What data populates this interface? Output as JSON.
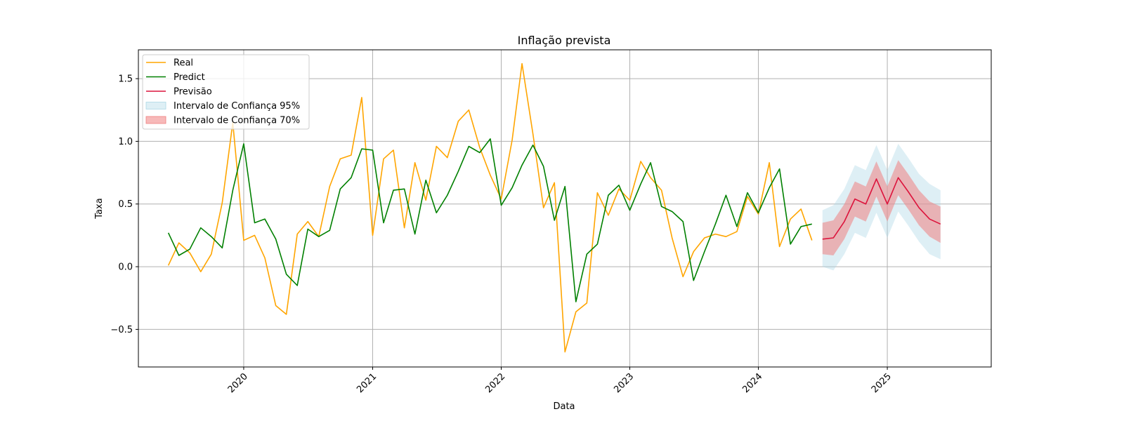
{
  "chart_data": {
    "type": "line",
    "title": "Inflação prevista",
    "xlabel": "Data",
    "ylabel": "Taxa",
    "grid": true,
    "legend_placement": "top-left",
    "xlim": [
      "2019-03-08",
      "2025-10-23"
    ],
    "ylim": [
      -0.8,
      1.73
    ],
    "x_ticks": [
      "2020-01-01",
      "2021-01-01",
      "2022-01-01",
      "2023-01-01",
      "2024-01-01",
      "2025-01-01"
    ],
    "x_tick_labels": [
      "2020",
      "2021",
      "2022",
      "2023",
      "2024",
      "2025"
    ],
    "y_ticks": [
      -0.5,
      0.0,
      0.5,
      1.0,
      1.5
    ],
    "y_tick_labels": [
      "−0.5",
      "0.0",
      "0.5",
      "1.0",
      "1.5"
    ],
    "series": [
      {
        "name": "Real",
        "color": "#ffa500",
        "start": "2019-06",
        "values": [
          0.01,
          0.19,
          0.11,
          -0.04,
          0.1,
          0.51,
          1.15,
          0.21,
          0.25,
          0.07,
          -0.31,
          -0.38,
          0.26,
          0.36,
          0.24,
          0.64,
          0.86,
          0.89,
          1.35,
          0.25,
          0.86,
          0.93,
          0.31,
          0.83,
          0.53,
          0.96,
          0.87,
          1.16,
          1.25,
          0.95,
          0.73,
          0.54,
          1.01,
          1.62,
          1.06,
          0.47,
          0.67,
          -0.68,
          -0.36,
          -0.29,
          0.59,
          0.41,
          0.62,
          0.53,
          0.84,
          0.71,
          0.61,
          0.23,
          -0.08,
          0.12,
          0.23,
          0.26,
          0.24,
          0.28,
          0.56,
          0.42,
          0.83,
          0.16,
          0.38,
          0.46,
          0.21
        ]
      },
      {
        "name": "Predict",
        "color": "#008000",
        "start": "2019-06",
        "values": [
          0.27,
          0.09,
          0.14,
          0.31,
          0.24,
          0.15,
          0.61,
          0.98,
          0.35,
          0.38,
          0.22,
          -0.06,
          -0.15,
          0.3,
          0.24,
          0.29,
          0.62,
          0.71,
          0.94,
          0.93,
          0.35,
          0.61,
          0.62,
          0.26,
          0.69,
          0.43,
          0.57,
          0.76,
          0.96,
          0.91,
          1.02,
          0.49,
          0.63,
          0.81,
          0.97,
          0.8,
          0.37,
          0.64,
          -0.28,
          0.1,
          0.18,
          0.57,
          0.65,
          0.45,
          0.66,
          0.83,
          0.48,
          0.44,
          0.36,
          -0.11,
          0.12,
          0.34,
          0.57,
          0.32,
          0.59,
          0.43,
          0.63,
          0.78,
          0.18,
          0.32,
          0.34
        ]
      },
      {
        "name": "Previsão",
        "color": "#dc143c",
        "start": "2024-07",
        "values": [
          0.22,
          0.23,
          0.36,
          0.54,
          0.5,
          0.7,
          0.5,
          0.71,
          0.6,
          0.47,
          0.38,
          0.34
        ]
      }
    ],
    "bands": [
      {
        "name": "Intervalo de Confiança 95%",
        "color": "#add8e6",
        "opacity": 0.4,
        "start": "2024-07",
        "lower": [
          0.0,
          -0.03,
          0.1,
          0.27,
          0.23,
          0.43,
          0.23,
          0.44,
          0.33,
          0.2,
          0.1,
          0.06
        ],
        "upper": [
          0.45,
          0.49,
          0.62,
          0.81,
          0.77,
          0.97,
          0.77,
          0.98,
          0.87,
          0.74,
          0.66,
          0.61
        ]
      },
      {
        "name": "Intervalo de Confiança 70%",
        "color": "#f08080",
        "opacity": 0.55,
        "start": "2024-07",
        "lower": [
          0.1,
          0.09,
          0.22,
          0.4,
          0.36,
          0.56,
          0.36,
          0.57,
          0.46,
          0.33,
          0.24,
          0.19
        ],
        "upper": [
          0.35,
          0.37,
          0.5,
          0.68,
          0.64,
          0.84,
          0.64,
          0.85,
          0.74,
          0.61,
          0.52,
          0.48
        ]
      }
    ],
    "legend_entries": [
      "Real",
      "Predict",
      "Previsão",
      "Intervalo de Confiança 95%",
      "Intervalo de Confiança 70%"
    ]
  }
}
